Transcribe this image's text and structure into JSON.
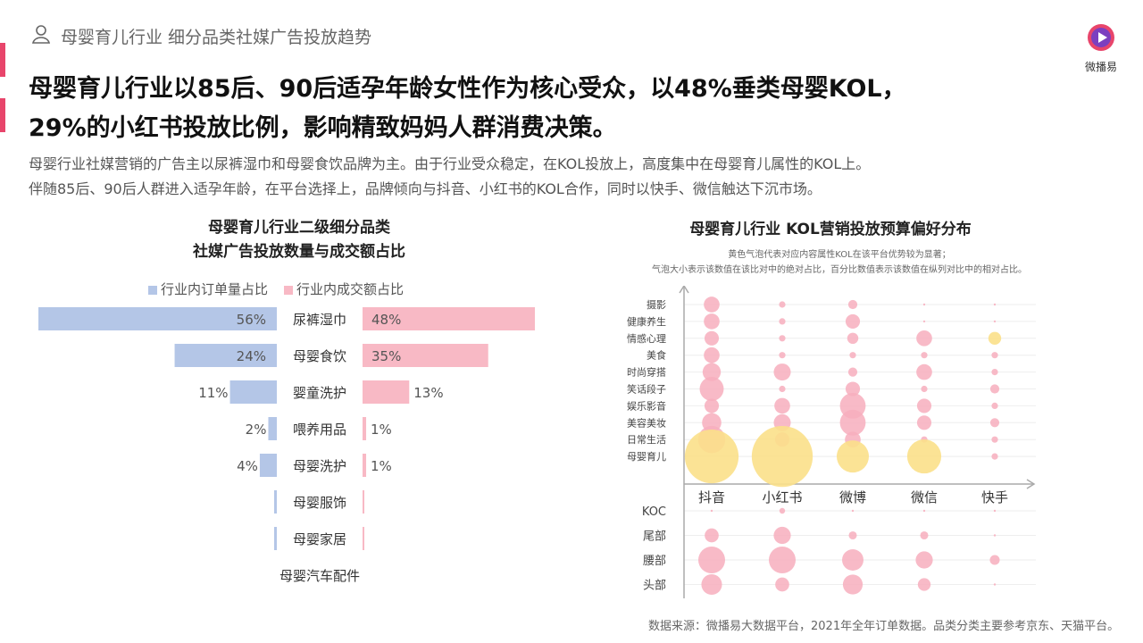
{
  "header": {
    "breadcrumb": "母婴育儿行业 细分品类社媒广告投放趋势",
    "logo_text": "微播易",
    "headline_line1": "母婴育儿行业以85后、90后适孕年龄女性作为核心受众，以48%垂类母婴KOL，",
    "headline_line2": "29%的小红书投放比例，影响精致妈妈人群消费决策。",
    "sub_line1": "母婴行业社媒营销的广告主以尿裤湿巾和母婴食饮品牌为主。由于行业受众稳定，在KOL投放上，高度集中在母婴育儿属性的KOL上。",
    "sub_line2": "伴随85后、90后人群进入适孕年龄，在平台选择上，品牌倾向与抖音、小红书的KOL合作，同时以快手、微信触达下沉市场。"
  },
  "colors": {
    "blue": "#b4c6e7",
    "pink": "#f8b9c5",
    "bubble_pink": "#f7aebd",
    "bubble_yellow": "#fbe08a",
    "accent": "#e8456b"
  },
  "chart_data": [
    {
      "type": "bar",
      "title_line1": "母婴育儿行业二级细分品类",
      "title_line2": "社媒广告投放数量与成交额占比",
      "legend_position": "top",
      "categories": [
        "尿裤湿巾",
        "母婴食饮",
        "婴童洗护",
        "喂养用品",
        "母婴洗护",
        "母婴服饰",
        "母婴家居",
        "母婴汽车配件"
      ],
      "series": [
        {
          "name": "行业内订单量占比",
          "values": [
            56,
            24,
            11,
            2,
            4,
            0.5,
            0.5,
            0
          ],
          "labels": [
            "56%",
            "24%",
            "11%",
            "2%",
            "4%",
            "",
            "",
            ""
          ]
        },
        {
          "name": "行业内成交额占比",
          "values": [
            48,
            35,
            13,
            1,
            1,
            0.3,
            0.1,
            0
          ],
          "labels": [
            "48%",
            "35%",
            "13%",
            "1%",
            "1%",
            "",
            "",
            ""
          ]
        }
      ]
    },
    {
      "type": "scatter",
      "title": "母婴育儿行业 KOL营销投放预算偏好分布",
      "note_line1": "黄色气泡代表对应内容属性KOL在该平台优势较为显著；",
      "note_line2": "气泡大小表示该数值在该比对中的绝对占比，百分比数值表示该数值在纵列对比中的相对占比。",
      "x_categories": [
        "抖音",
        "小红书",
        "微博",
        "微信",
        "快手"
      ],
      "content_categories": [
        "摄影",
        "健康养生",
        "情感心理",
        "美食",
        "时尚穿搭",
        "笑话段子",
        "娱乐影音",
        "美容美妆",
        "日常生活",
        "母婴育儿"
      ],
      "tier_categories": [
        "KOC",
        "尾部",
        "腰部",
        "头部"
      ],
      "content_bubbles": [
        [
          0.06,
          0.06,
          0.05,
          0.06,
          0.08,
          0.14,
          0.05,
          0.09,
          0.18,
          0.7
        ],
        [
          0.01,
          0.01,
          0.01,
          0.01,
          0.07,
          0.01,
          0.06,
          0.07,
          0.05,
          0.9
        ],
        [
          0.02,
          0.05,
          0.03,
          0.01,
          0.02,
          0.05,
          0.16,
          0.16,
          0.06,
          0.25
        ],
        [
          0.0,
          0.0,
          0.06,
          0.01,
          0.06,
          0.01,
          0.05,
          0.05,
          0.01,
          0.28
        ],
        [
          0.0,
          0.0,
          0.04,
          0.01,
          0.01,
          0.02,
          0.01,
          0.02,
          0.01,
          0.01
        ]
      ],
      "content_highlight": [
        [
          0,
          0,
          0,
          0,
          0,
          0,
          0,
          0,
          0,
          1
        ],
        [
          0,
          0,
          0,
          0,
          0,
          0,
          0,
          0,
          0,
          1
        ],
        [
          0,
          0,
          0,
          0,
          0,
          0,
          0,
          0,
          0,
          1
        ],
        [
          0,
          0,
          0,
          0,
          0,
          0,
          0,
          0,
          0,
          1
        ],
        [
          0,
          0,
          1,
          0,
          0,
          0,
          0,
          0,
          0,
          0
        ]
      ],
      "tier_bubbles": [
        [
          0.0,
          0.06,
          0.22,
          0.13
        ],
        [
          0.01,
          0.09,
          0.22,
          0.06
        ],
        [
          0.0,
          0.02,
          0.14,
          0.12
        ],
        [
          0.0,
          0.02,
          0.09,
          0.05
        ],
        [
          0.0,
          0.0,
          0.03,
          0.0
        ]
      ]
    }
  ],
  "source": "数据来源：微播易大数据平台，2021年全年订单数据。品类分类主要参考京东、天猫平台。"
}
